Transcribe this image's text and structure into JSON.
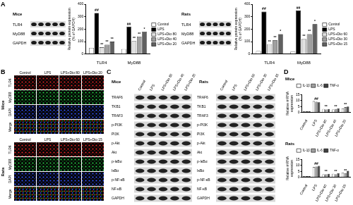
{
  "panel_labels": [
    "A",
    "B",
    "C",
    "D"
  ],
  "chart_data": [
    {
      "type": "bar",
      "title": "Mice",
      "y_label": "Relative protein expression (% of GAPDH)",
      "categories": [
        "TLR4",
        "MyD88"
      ],
      "series": [
        {
          "name": "Control",
          "color": "#ffffff",
          "values": [
            50,
            40
          ],
          "significance": [
            null,
            null
          ]
        },
        {
          "name": "LPS",
          "color": "#000000",
          "values": [
            330,
            220
          ],
          "significance": [
            "##",
            "##"
          ]
        },
        {
          "name": "LPS+Dio 80",
          "color": "#e0e0e0",
          "values": [
            55,
            105
          ],
          "significance": [
            "**",
            "**"
          ]
        },
        {
          "name": "LPS+Dio 40",
          "color": "#a0a0a0",
          "values": [
            75,
            140
          ],
          "significance": [
            "**",
            "**"
          ]
        },
        {
          "name": "LPS+Dio 20",
          "color": "#606060",
          "values": [
            100,
            180
          ],
          "significance": [
            "**",
            "*"
          ]
        }
      ],
      "ylim": [
        0,
        400
      ],
      "yticks": [
        0,
        100,
        200,
        300,
        400
      ],
      "grid": false,
      "legend": "right"
    },
    {
      "type": "bar",
      "title": "Rats",
      "y_label": "Relative protein expression (% of GAPDH)",
      "categories": [
        "TLR4",
        "MyD88"
      ],
      "series": [
        {
          "name": "Control",
          "color": "#ffffff",
          "values": [
            25,
            20
          ],
          "significance": [
            null,
            null
          ]
        },
        {
          "name": "LPS",
          "color": "#000000",
          "values": [
            340,
            350
          ],
          "significance": [
            "##",
            "##"
          ]
        },
        {
          "name": "LPS+Dio 60",
          "color": "#e0e0e0",
          "values": [
            80,
            120
          ],
          "significance": [
            "**",
            "**"
          ]
        },
        {
          "name": "LPS+Dio 30",
          "color": "#a0a0a0",
          "values": [
            110,
            160
          ],
          "significance": [
            "**",
            "**"
          ]
        },
        {
          "name": "LPS+Dio 15",
          "color": "#606060",
          "values": [
            160,
            240
          ],
          "significance": [
            "*",
            "*"
          ]
        }
      ],
      "ylim": [
        0,
        400
      ],
      "yticks": [
        0,
        100,
        200,
        300,
        400
      ],
      "grid": false,
      "legend": "right"
    },
    {
      "type": "bar",
      "title": "Mice",
      "y_label": "Relative mRNA expression",
      "categories": [
        "Control",
        "LPS",
        "LPS+Dio 80",
        "LPS+Dio 40",
        "LPS+Dio 20"
      ],
      "series": [
        {
          "name": "IL-1β",
          "color": "#ffffff",
          "values": [
            1,
            9.5,
            3,
            2.5,
            3.5
          ],
          "significance": [
            null,
            null,
            null,
            null,
            null
          ]
        },
        {
          "name": "IL-6",
          "color": "#a0a0a0",
          "values": [
            1,
            9,
            2.5,
            3,
            4.5
          ],
          "significance": [
            null,
            "##",
            "**",
            "**",
            "**"
          ]
        },
        {
          "name": "TNF-α",
          "color": "#404040",
          "values": [
            1,
            8.5,
            3,
            3.5,
            5
          ],
          "significance": [
            null,
            null,
            null,
            null,
            null
          ]
        }
      ],
      "ylim": [
        0,
        15
      ],
      "yticks": [
        0,
        5,
        10,
        15
      ],
      "grid": false,
      "legend": "top"
    },
    {
      "type": "bar",
      "title": "Rats",
      "y_label": "Relative mRNA expression",
      "categories": [
        "Control",
        "LPS",
        "LPS+Dio 60",
        "LPS+Dio 30",
        "LPS+Dio 15"
      ],
      "series": [
        {
          "name": "IL-1β",
          "color": "#ffffff",
          "values": [
            1,
            8.5,
            2.5,
            3,
            4
          ],
          "significance": [
            null,
            null,
            null,
            null,
            null
          ]
        },
        {
          "name": "IL-6",
          "color": "#a0a0a0",
          "values": [
            1,
            9,
            2.5,
            2.5,
            3.5
          ],
          "significance": [
            null,
            "##",
            "**",
            "**",
            "**"
          ]
        },
        {
          "name": "TNF-α",
          "color": "#404040",
          "values": [
            1,
            9.5,
            3,
            3.5,
            5.5
          ],
          "significance": [
            null,
            null,
            null,
            null,
            null
          ]
        }
      ],
      "ylim": [
        0,
        15
      ],
      "yticks": [
        0,
        5,
        10,
        15
      ],
      "grid": false,
      "legend": "top"
    }
  ],
  "panel_A_blots": [
    {
      "rows": [
        "TLR4",
        "MyD88",
        "GAPDH"
      ]
    },
    {
      "rows": [
        "TLR4",
        "MyD88",
        "GAPDH"
      ]
    }
  ],
  "panel_B": [
    {
      "species": "Mice",
      "columns": [
        "Control",
        "LPS",
        "LPS+Dio 80",
        "LPS+Dio 20"
      ],
      "rows": [
        "TLR4",
        "MyD88",
        "DAPI",
        "Merge"
      ]
    },
    {
      "species": "Rats",
      "columns": [
        "Control",
        "LPS",
        "LPS+Dio 60",
        "LPS+Dio 15"
      ],
      "rows": [
        "TLR4",
        "MyD88",
        "DAPI",
        "Merge"
      ]
    }
  ],
  "panel_C": [
    {
      "species": "Mice",
      "columns": [
        "Control",
        "LPS",
        "LPS+Dio 80",
        "LPS+Dio 40",
        "LPS+Dio 20"
      ],
      "rows": [
        "TRAF6",
        "TKB1",
        "TRAF3",
        "p-PI3K",
        "PI3K",
        "p-Akt",
        "Akt",
        "p-IκBα",
        "IκBα",
        "p-NF-κB",
        "NF-κB",
        "GAPDH"
      ]
    },
    {
      "species": "Rats",
      "columns": [
        "Control",
        "LPS",
        "LPS+Dio 60",
        "LPS+Dio 30",
        "LPS+Dio 15"
      ],
      "rows": [
        "TRAF6",
        "TKB1",
        "TRAF3",
        "p-PI3K",
        "PI3K",
        "p-Akt",
        "Akt",
        "p-IκBα",
        "IκBα",
        "p-NF-κB",
        "NF-κB",
        "GAPDH"
      ]
    }
  ]
}
